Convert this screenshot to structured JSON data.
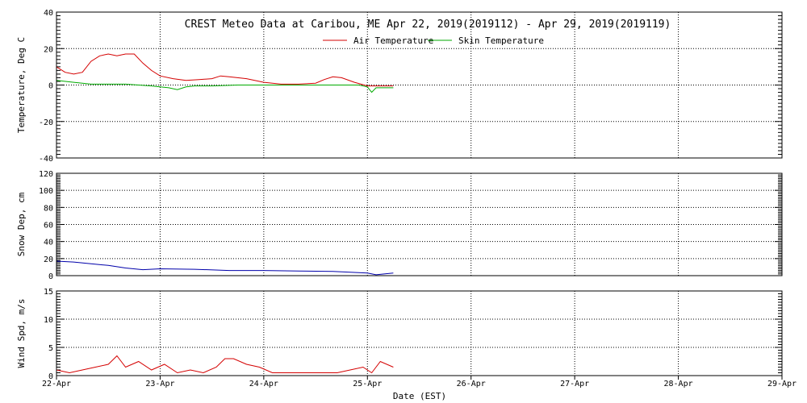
{
  "chart_data": {
    "title": "CREST Meteo Data at Caribou, ME   Apr 22, 2019(2019112) - Apr 29, 2019(2019119)",
    "xlabel": "Date (EST)",
    "x_ticks": [
      "22-Apr",
      "23-Apr",
      "24-Apr",
      "25-Apr",
      "26-Apr",
      "27-Apr",
      "28-Apr",
      "29-Apr"
    ],
    "xlim": [
      "2019-04-22",
      "2019-04-29"
    ],
    "grid": true,
    "panels": [
      {
        "type": "line",
        "ylabel": "Temperature, Deg C",
        "ylim": [
          -40,
          40
        ],
        "yticks": [
          -40,
          -20,
          0,
          20,
          40
        ],
        "legend": "top-center",
        "series": [
          {
            "name": "Air Temperature",
            "color": "#d40000",
            "x": [
              "2019-04-22 00:00",
              "2019-04-22 02:00",
              "2019-04-22 04:00",
              "2019-04-22 06:00",
              "2019-04-22 08:00",
              "2019-04-22 10:00",
              "2019-04-22 12:00",
              "2019-04-22 14:00",
              "2019-04-22 16:00",
              "2019-04-22 18:00",
              "2019-04-22 20:00",
              "2019-04-22 22:00",
              "2019-04-23 00:00",
              "2019-04-23 03:00",
              "2019-04-23 06:00",
              "2019-04-23 09:00",
              "2019-04-23 12:00",
              "2019-04-23 14:00",
              "2019-04-23 16:00",
              "2019-04-23 20:00",
              "2019-04-24 00:00",
              "2019-04-24 04:00",
              "2019-04-24 08:00",
              "2019-04-24 12:00",
              "2019-04-24 14:00",
              "2019-04-24 16:00",
              "2019-04-24 18:00",
              "2019-04-24 21:00",
              "2019-04-25 00:00",
              "2019-04-25 04:00",
              "2019-04-25 06:00"
            ],
            "values": [
              10,
              7,
              6,
              7,
              13,
              16,
              17,
              16,
              17,
              17,
              12,
              8,
              5,
              3.5,
              2.5,
              3,
              3.5,
              5,
              4.5,
              3.5,
              1.5,
              0.5,
              0.5,
              1,
              3,
              4.5,
              4,
              1.5,
              -0.5,
              -0.5,
              -0.5
            ]
          },
          {
            "name": "Skin Temperature",
            "color": "#00aa00",
            "x": [
              "2019-04-22 00:00",
              "2019-04-22 04:00",
              "2019-04-22 08:00",
              "2019-04-22 16:00",
              "2019-04-22 22:00",
              "2019-04-23 02:00",
              "2019-04-23 04:00",
              "2019-04-23 06:00",
              "2019-04-23 08:00",
              "2019-04-23 12:00",
              "2019-04-23 18:00",
              "2019-04-24 00:00",
              "2019-04-24 06:00",
              "2019-04-24 12:00",
              "2019-04-24 18:00",
              "2019-04-24 22:00",
              "2019-04-25 00:00",
              "2019-04-25 01:00",
              "2019-04-25 02:00",
              "2019-04-25 06:00"
            ],
            "values": [
              2.5,
              1.5,
              0.5,
              0.5,
              -0.5,
              -1.5,
              -2.5,
              -1,
              -0.5,
              -0.5,
              0,
              0,
              0,
              0,
              0,
              0,
              -1,
              -4,
              -1.5,
              -1.5
            ]
          }
        ]
      },
      {
        "type": "line",
        "ylabel": "Snow Dep, cm",
        "ylim": [
          0,
          120
        ],
        "yticks": [
          0,
          20,
          40,
          60,
          80,
          100,
          120
        ],
        "series": [
          {
            "color": "#0000aa",
            "x": [
              "2019-04-22 00:00",
              "2019-04-22 04:00",
              "2019-04-22 08:00",
              "2019-04-22 12:00",
              "2019-04-22 16:00",
              "2019-04-22 20:00",
              "2019-04-23 00:00",
              "2019-04-23 08:00",
              "2019-04-23 16:00",
              "2019-04-24 00:00",
              "2019-04-24 08:00",
              "2019-04-24 16:00",
              "2019-04-24 20:00",
              "2019-04-25 00:00",
              "2019-04-25 02:00",
              "2019-04-25 06:00"
            ],
            "values": [
              17,
              16,
              14,
              12,
              9,
              7,
              8,
              7.5,
              6,
              6,
              5.5,
              5,
              4,
              3,
              1,
              3
            ]
          }
        ]
      },
      {
        "type": "line",
        "ylabel": "Wind Spd, m/s",
        "ylim": [
          0,
          15
        ],
        "yticks": [
          0,
          5,
          10,
          15
        ],
        "series": [
          {
            "color": "#d40000",
            "x": [
              "2019-04-22 00:00",
              "2019-04-22 03:00",
              "2019-04-22 06:00",
              "2019-04-22 09:00",
              "2019-04-22 12:00",
              "2019-04-22 14:00",
              "2019-04-22 16:00",
              "2019-04-22 19:00",
              "2019-04-22 22:00",
              "2019-04-23 01:00",
              "2019-04-23 04:00",
              "2019-04-23 07:00",
              "2019-04-23 10:00",
              "2019-04-23 13:00",
              "2019-04-23 15:00",
              "2019-04-23 17:00",
              "2019-04-23 20:00",
              "2019-04-23 23:00",
              "2019-04-24 02:00",
              "2019-04-24 05:00",
              "2019-04-24 08:00",
              "2019-04-24 11:00",
              "2019-04-24 14:00",
              "2019-04-24 17:00",
              "2019-04-24 20:00",
              "2019-04-24 23:00",
              "2019-04-25 01:00",
              "2019-04-25 03:00",
              "2019-04-25 06:00"
            ],
            "values": [
              1,
              0.5,
              1,
              1.5,
              2,
              3.5,
              1.5,
              2.5,
              1,
              2,
              0.5,
              1,
              0.5,
              1.5,
              3,
              3,
              2,
              1.5,
              0.5,
              0.5,
              0.5,
              0.5,
              0.5,
              0.5,
              1,
              1.5,
              0.5,
              2.5,
              1.5
            ]
          }
        ]
      }
    ]
  }
}
